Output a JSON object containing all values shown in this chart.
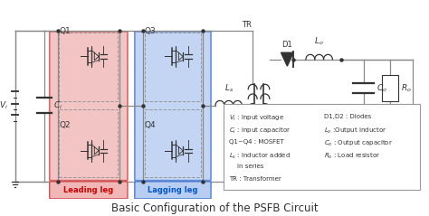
{
  "title": "Basic Configuration of the PSFB Circuit",
  "title_fontsize": 8.5,
  "bg_color": "#ffffff",
  "leading_leg_color": "#f0b0b0",
  "lagging_leg_color": "#b0c8f0",
  "leading_leg_border": "#d04040",
  "lagging_leg_border": "#4070d0",
  "legend_lines": [
    [
      "Vi_left",
      "Vi : Input voltage",
      "D1,D2 : Diodes"
    ],
    [
      "Ci_left",
      "Ci : Input capacitor",
      "Lo :Output inductor"
    ],
    [
      "Q_left",
      "Q1~Q4 : MOSFET",
      "Co : Output capacitor"
    ],
    [
      "Ls_left",
      "Ls : Inductor added",
      "Ro : Load resistor"
    ],
    [
      "",
      "    in series",
      ""
    ],
    [
      "",
      "TR : Transformer",
      ""
    ]
  ]
}
